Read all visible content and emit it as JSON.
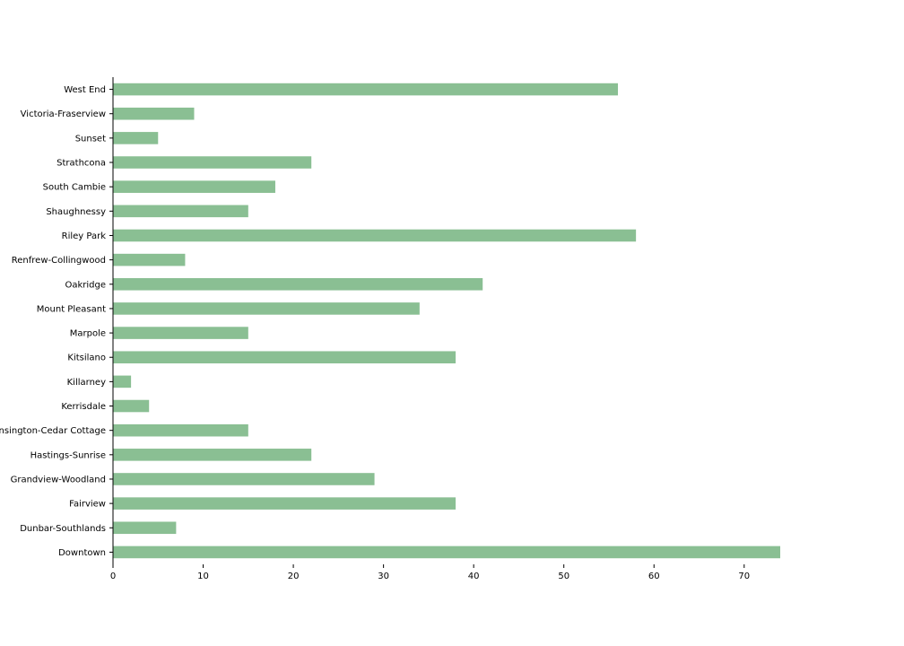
{
  "chart_data": {
    "type": "bar",
    "orientation": "horizontal",
    "title": "",
    "xlabel": "",
    "ylabel": "",
    "categories": [
      "Downtown",
      "Dunbar-Southlands",
      "Fairview",
      "Grandview-Woodland",
      "Hastings-Sunrise",
      "Kensington-Cedar Cottage",
      "Kerrisdale",
      "Killarney",
      "Kitsilano",
      "Marpole",
      "Mount Pleasant",
      "Oakridge",
      "Renfrew-Collingwood",
      "Riley Park",
      "Shaughnessy",
      "South Cambie",
      "Strathcona",
      "Sunset",
      "Victoria-Fraserview",
      "West End"
    ],
    "values": [
      74,
      7,
      38,
      29,
      22,
      15,
      4,
      2,
      38,
      15,
      34,
      41,
      8,
      58,
      15,
      18,
      22,
      5,
      9,
      56
    ],
    "xlim": [
      0,
      74
    ],
    "xticks": [
      0,
      10,
      20,
      30,
      40,
      50,
      60,
      70
    ],
    "grid": false,
    "legend": "none",
    "colors": {
      "bar": "#8abf93",
      "axis": "#000000"
    }
  }
}
